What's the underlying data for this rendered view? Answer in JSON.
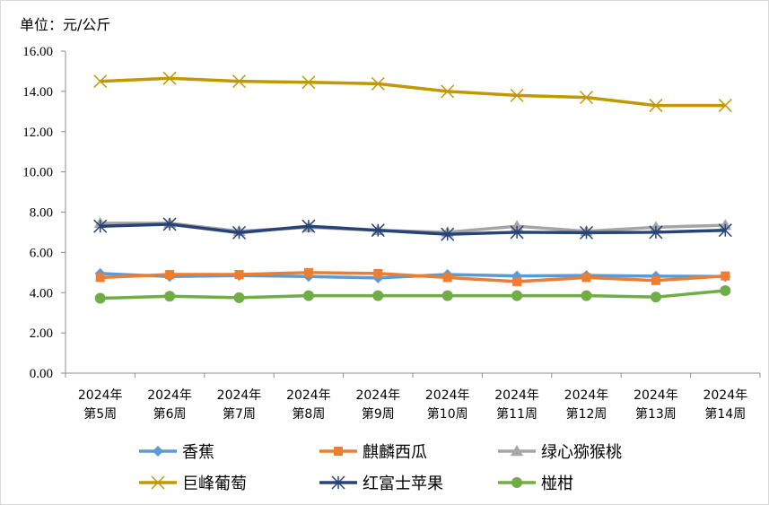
{
  "unit_label": "单位：元/公斤",
  "chart_data": {
    "type": "line",
    "title": "",
    "xlabel": "",
    "ylabel": "",
    "ylim": [
      0,
      16
    ],
    "ytick_step": 2,
    "ytick_format": "0.00",
    "grid": false,
    "legend_placement": "bottom",
    "categories": [
      [
        "2024年",
        "第5周"
      ],
      [
        "2024年",
        "第6周"
      ],
      [
        "2024年",
        "第7周"
      ],
      [
        "2024年",
        "第8周"
      ],
      [
        "2024年",
        "第9周"
      ],
      [
        "2024年",
        "第10周"
      ],
      [
        "2024年",
        "第11周"
      ],
      [
        "2024年",
        "第12周"
      ],
      [
        "2024年",
        "第13周"
      ],
      [
        "2024年",
        "第14周"
      ]
    ],
    "series": [
      {
        "name": "香蕉",
        "color": "#5b9bd5",
        "marker": "diamond",
        "values": [
          4.95,
          4.8,
          4.85,
          4.8,
          4.73,
          4.9,
          4.83,
          4.85,
          4.82,
          4.8
        ]
      },
      {
        "name": "麒麟西瓜",
        "color": "#ed7d31",
        "marker": "square",
        "values": [
          4.75,
          4.9,
          4.9,
          5.0,
          4.95,
          4.75,
          4.55,
          4.75,
          4.6,
          4.83
        ]
      },
      {
        "name": "绿心猕猴桃",
        "color": "#a5a5a5",
        "marker": "triangle",
        "values": [
          7.45,
          7.45,
          7.05,
          7.25,
          7.1,
          7.0,
          7.3,
          7.05,
          7.25,
          7.35
        ]
      },
      {
        "name": "巨峰葡萄",
        "color": "#c09900",
        "marker": "x",
        "values": [
          14.5,
          14.65,
          14.5,
          14.45,
          14.38,
          14.0,
          13.8,
          13.7,
          13.3,
          13.3
        ]
      },
      {
        "name": "红富士苹果",
        "color": "#264478",
        "marker": "star",
        "values": [
          7.3,
          7.4,
          6.98,
          7.3,
          7.1,
          6.9,
          7.0,
          6.98,
          7.0,
          7.1
        ]
      },
      {
        "name": "椪柑",
        "color": "#70ad47",
        "marker": "circle",
        "values": [
          3.72,
          3.82,
          3.75,
          3.85,
          3.85,
          3.85,
          3.85,
          3.85,
          3.78,
          4.1
        ]
      }
    ]
  }
}
